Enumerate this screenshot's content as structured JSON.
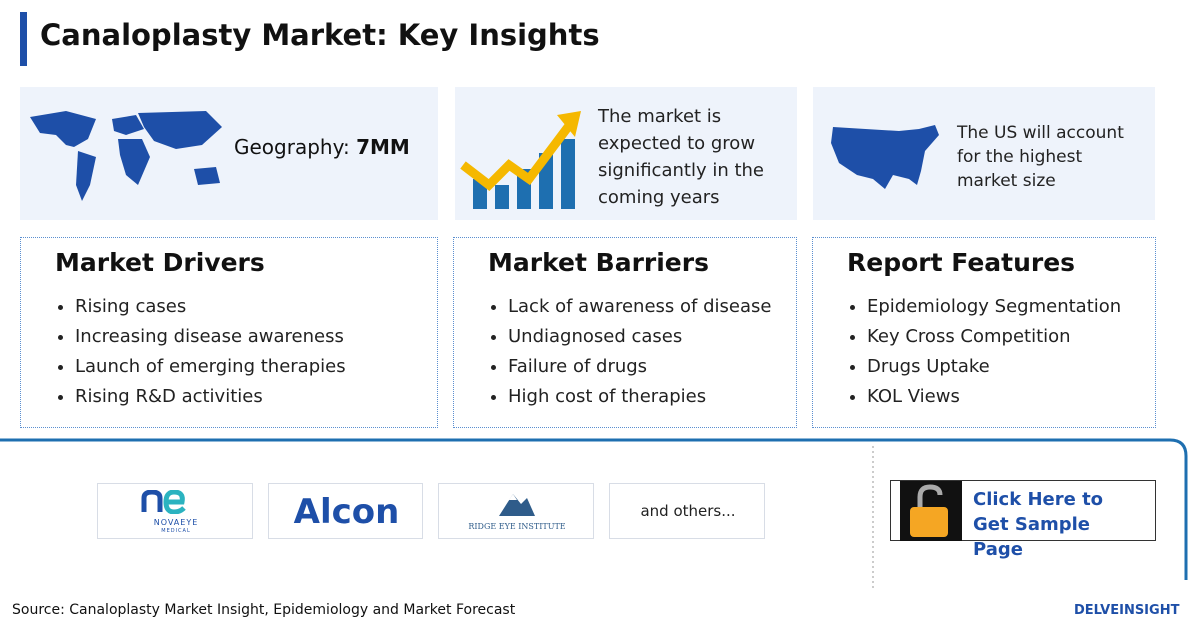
{
  "header": {
    "title": "Canaloplasty Market: Key Insights"
  },
  "insights": [
    {
      "label": "Geography: ",
      "value": "7MM"
    },
    {
      "text": "The market is expected to grow significantly in the coming years"
    },
    {
      "text": "The US will account for the highest market size"
    }
  ],
  "panels": [
    {
      "title": "Market Drivers",
      "items": [
        "Rising cases",
        "Increasing disease awareness",
        "Launch of emerging therapies",
        "Rising R&D activities"
      ]
    },
    {
      "title": "Market Barriers",
      "items": [
        "Lack of awareness of disease",
        "Undiagnosed cases",
        "Failure of drugs",
        "High cost of therapies"
      ]
    },
    {
      "title": "Report Features",
      "items": [
        "Epidemiology Segmentation",
        "Key Cross Competition",
        "Drugs Uptake",
        "KOL Views"
      ]
    }
  ],
  "companies": [
    "NOVAEYE",
    "MEDICAL",
    "Alcon",
    "RIDGE EYE INSTITUTE",
    "and others..."
  ],
  "cta": "Click Here to Get Sample Page",
  "source": "Source: Canaloplasty Market Insight, Epidemiology and Market Forecast",
  "brand": "DELVEINSIGHT"
}
